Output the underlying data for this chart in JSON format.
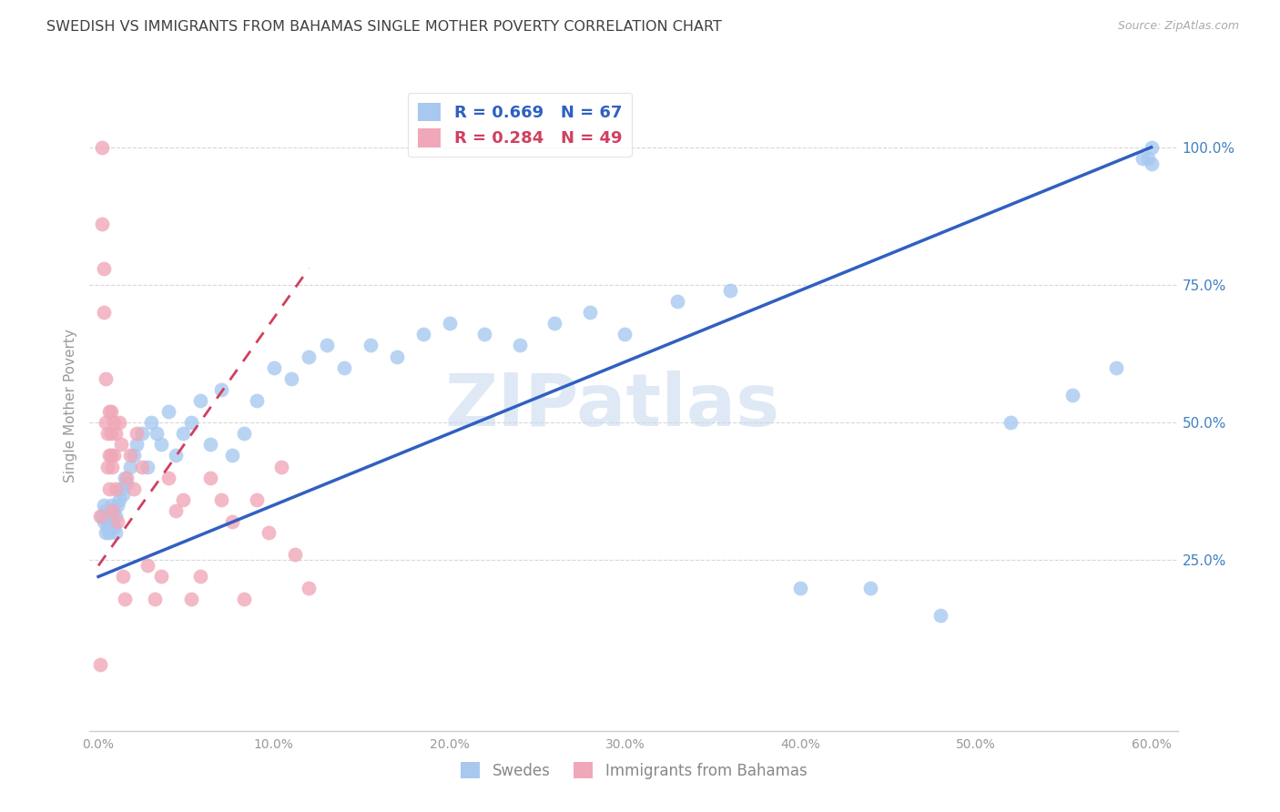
{
  "title": "SWEDISH VS IMMIGRANTS FROM BAHAMAS SINGLE MOTHER POVERTY CORRELATION CHART",
  "source": "Source: ZipAtlas.com",
  "ylabel": "Single Mother Poverty",
  "right_yticks": [
    "100.0%",
    "75.0%",
    "50.0%",
    "25.0%"
  ],
  "right_ytick_vals": [
    1.0,
    0.75,
    0.5,
    0.25
  ],
  "watermark_text": "ZIPatlas",
  "legend_blue_r": "R = 0.669",
  "legend_blue_n": "N = 67",
  "legend_pink_r": "R = 0.284",
  "legend_pink_n": "N = 49",
  "legend_label_blue": "Swedes",
  "legend_label_pink": "Immigrants from Bahamas",
  "blue_color": "#a8c8f0",
  "blue_line_color": "#3060c0",
  "pink_color": "#f0a8b8",
  "pink_line_color": "#d04060",
  "background_color": "#ffffff",
  "grid_color": "#d8d8d8",
  "title_color": "#404040",
  "right_axis_color": "#4080c0",
  "swedes_x": [
    0.002,
    0.003,
    0.003,
    0.004,
    0.004,
    0.005,
    0.005,
    0.006,
    0.006,
    0.007,
    0.007,
    0.008,
    0.008,
    0.009,
    0.009,
    0.01,
    0.01,
    0.011,
    0.012,
    0.013,
    0.014,
    0.015,
    0.016,
    0.018,
    0.02,
    0.022,
    0.025,
    0.028,
    0.03,
    0.033,
    0.036,
    0.04,
    0.044,
    0.048,
    0.053,
    0.058,
    0.064,
    0.07,
    0.076,
    0.083,
    0.09,
    0.1,
    0.11,
    0.12,
    0.13,
    0.14,
    0.155,
    0.17,
    0.185,
    0.2,
    0.22,
    0.24,
    0.26,
    0.28,
    0.3,
    0.33,
    0.36,
    0.4,
    0.44,
    0.48,
    0.52,
    0.555,
    0.58,
    0.595,
    0.598,
    0.6,
    0.6
  ],
  "swedes_y": [
    0.33,
    0.35,
    0.32,
    0.3,
    0.34,
    0.31,
    0.33,
    0.3,
    0.32,
    0.35,
    0.31,
    0.33,
    0.32,
    0.34,
    0.31,
    0.33,
    0.3,
    0.35,
    0.36,
    0.38,
    0.37,
    0.4,
    0.39,
    0.42,
    0.44,
    0.46,
    0.48,
    0.42,
    0.5,
    0.48,
    0.46,
    0.52,
    0.44,
    0.48,
    0.5,
    0.54,
    0.46,
    0.56,
    0.44,
    0.48,
    0.54,
    0.6,
    0.58,
    0.62,
    0.64,
    0.6,
    0.64,
    0.62,
    0.66,
    0.68,
    0.66,
    0.64,
    0.68,
    0.7,
    0.66,
    0.72,
    0.74,
    0.2,
    0.2,
    0.15,
    0.5,
    0.55,
    0.6,
    0.98,
    0.98,
    0.97,
    1.0
  ],
  "bahamas_x": [
    0.001,
    0.001,
    0.002,
    0.002,
    0.003,
    0.003,
    0.004,
    0.004,
    0.005,
    0.005,
    0.006,
    0.006,
    0.006,
    0.007,
    0.007,
    0.007,
    0.008,
    0.008,
    0.009,
    0.009,
    0.01,
    0.01,
    0.011,
    0.012,
    0.013,
    0.014,
    0.015,
    0.016,
    0.018,
    0.02,
    0.022,
    0.025,
    0.028,
    0.032,
    0.036,
    0.04,
    0.044,
    0.048,
    0.053,
    0.058,
    0.064,
    0.07,
    0.076,
    0.083,
    0.09,
    0.097,
    0.104,
    0.112,
    0.12
  ],
  "bahamas_y": [
    0.06,
    0.33,
    1.0,
    0.86,
    0.78,
    0.7,
    0.58,
    0.5,
    0.48,
    0.42,
    0.52,
    0.44,
    0.38,
    0.48,
    0.44,
    0.52,
    0.42,
    0.34,
    0.5,
    0.44,
    0.48,
    0.38,
    0.32,
    0.5,
    0.46,
    0.22,
    0.18,
    0.4,
    0.44,
    0.38,
    0.48,
    0.42,
    0.24,
    0.18,
    0.22,
    0.4,
    0.34,
    0.36,
    0.18,
    0.22,
    0.4,
    0.36,
    0.32,
    0.18,
    0.36,
    0.3,
    0.42,
    0.26,
    0.2
  ],
  "blue_line_x": [
    0.0,
    0.6
  ],
  "blue_line_y": [
    0.22,
    1.0
  ],
  "pink_line_x": [
    0.0,
    0.12
  ],
  "pink_line_y": [
    0.24,
    0.78
  ],
  "xlim": [
    -0.005,
    0.615
  ],
  "ylim": [
    -0.06,
    1.12
  ],
  "xtick_vals": [
    0.0,
    0.1,
    0.2,
    0.3,
    0.4,
    0.5,
    0.6
  ],
  "xtick_labels": [
    "0.0%",
    "10.0%",
    "20.0%",
    "30.0%",
    "40.0%",
    "50.0%",
    "60.0%"
  ]
}
